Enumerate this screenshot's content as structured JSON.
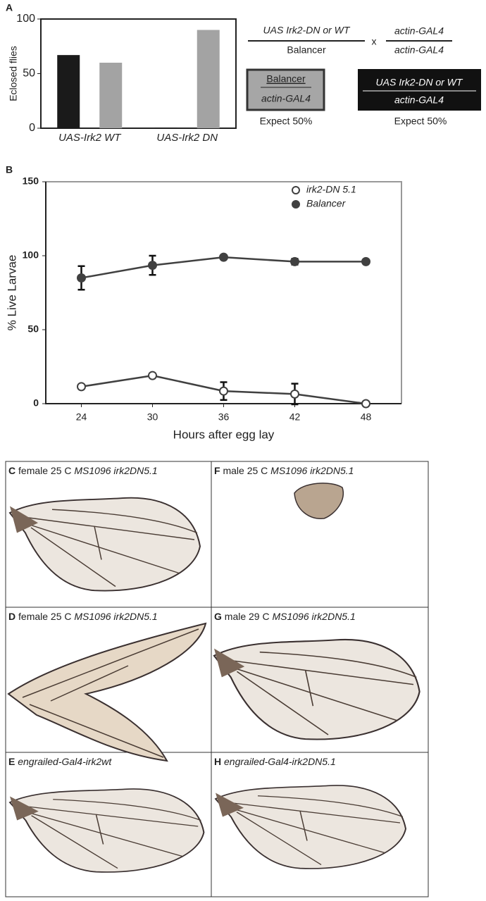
{
  "chart_data": [
    {
      "type": "bar",
      "panel": "A",
      "y_label": "Eclosed flies",
      "categories": [
        "UAS-Irk2 WT",
        "UAS-Irk2 DN"
      ],
      "series": [
        {
          "color": "#1a1a1a",
          "values": [
            67,
            0.5
          ]
        },
        {
          "color": "#a3a3a3",
          "values": [
            60,
            90
          ]
        }
      ],
      "ylim": [
        0,
        100
      ],
      "yticks": [
        0,
        50,
        100
      ]
    },
    {
      "type": "line",
      "panel": "B",
      "x_label": "Hours after egg lay",
      "y_label": "% Live Larvae",
      "x": [
        24,
        30,
        36,
        42,
        48
      ],
      "xlim": [
        21,
        51
      ],
      "xticks": [
        24,
        30,
        36,
        42,
        48
      ],
      "ylim": [
        0,
        150
      ],
      "yticks": [
        0,
        50,
        100,
        150
      ],
      "legend": "upper right",
      "series": [
        {
          "name": "irk2-DN 5.1",
          "color": "#404040",
          "marker": "open",
          "values": [
            11.5,
            19,
            8.5,
            6.5,
            0
          ],
          "errors": [
            null,
            null,
            6,
            7,
            null
          ]
        },
        {
          "name": "Balancer",
          "color": "#404040",
          "marker": "filled",
          "values": [
            85,
            93.5,
            99,
            96,
            96
          ],
          "errors": [
            8,
            6.5,
            null,
            2,
            null
          ]
        }
      ]
    }
  ],
  "cross": {
    "parent1_top": "UAS Irk2-DN or WT",
    "parent1_bottom": "Balancer",
    "cross_sign": "x",
    "parent2_top": "actin-GAL4",
    "parent2_bottom": "actin-GAL4",
    "offspring": [
      {
        "top": "Balancer",
        "bottom": "actin-GAL4",
        "expect": "Expect 50%"
      },
      {
        "top": "UAS Irk2-DN or WT",
        "bottom": "actin-GAL4",
        "expect": "Expect 50%"
      }
    ]
  },
  "wing_panels": [
    {
      "label": "C",
      "text": "female 25 C",
      "genotype": "MS1096 irk2DN5.1"
    },
    {
      "label": "F",
      "text": "male 25 C",
      "genotype": "MS1096 irk2DN5.1"
    },
    {
      "label": "D",
      "text": "female 25 C",
      "genotype": "MS1096 irk2DN5.1"
    },
    {
      "label": "G",
      "text": "male 29 C",
      "genotype": "MS1096 irk2DN5.1"
    },
    {
      "label": "E",
      "genotype": "engrailed-Gal4-irk2wt"
    },
    {
      "label": "H",
      "genotype": "engrailed-Gal4-irk2DN5.1"
    }
  ]
}
